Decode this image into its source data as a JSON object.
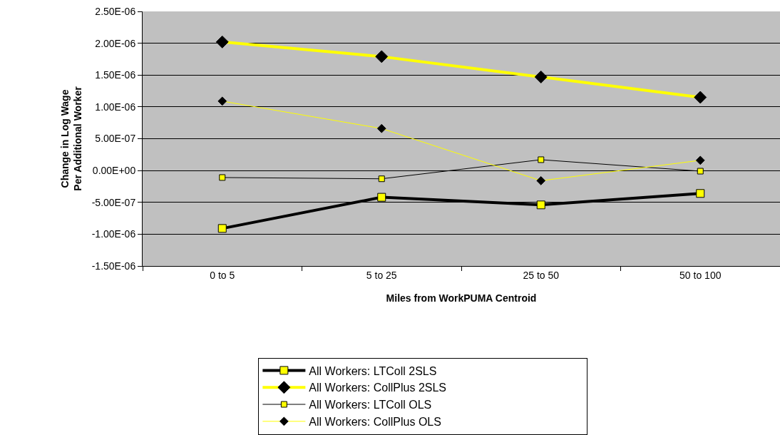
{
  "chart_data": {
    "type": "line",
    "xlabel": "Miles from WorkPUMA Centroid",
    "ylabel": "Change in Log Wage Per Additional Worker",
    "categories": [
      "0 to 5",
      "5 to 25",
      "25 to 50",
      "50 to 100"
    ],
    "series": [
      {
        "name": "All Workers: LTColl 2SLS",
        "color": "#000000",
        "marker": "square",
        "values": [
          -9.1e-07,
          -4.2e-07,
          -5.4e-07,
          -3.6e-07
        ]
      },
      {
        "name": "All Workers: CollPlus 2SLS",
        "color": "#ffff00",
        "marker": "diamond",
        "values": [
          2.02e-06,
          1.79e-06,
          1.47e-06,
          1.15e-06
        ]
      },
      {
        "name": "All Workers: LTColl OLS",
        "color": "#000000",
        "marker": "square",
        "values": [
          -1.1e-07,
          -1.3e-07,
          1.7e-07,
          -1e-08
        ]
      },
      {
        "name": "All Workers: CollPlus OLS",
        "color": "#ffff00",
        "marker": "diamond",
        "values": [
          1.09e-06,
          6.6e-07,
          -1.6e-07,
          1.6e-07
        ]
      }
    ],
    "ylim": [
      -1.5e-06,
      2.5e-06
    ],
    "yticks": [
      {
        "value": -1.5e-06,
        "label": "-1.50E-06"
      },
      {
        "value": -1e-06,
        "label": "-1.00E-06"
      },
      {
        "value": -5e-07,
        "label": "-5.00E-07"
      },
      {
        "value": 0,
        "label": "0.00E+00"
      },
      {
        "value": 5e-07,
        "label": "5.00E-07"
      },
      {
        "value": 1e-06,
        "label": "1.00E-06"
      },
      {
        "value": 1.5e-06,
        "label": "1.50E-06"
      },
      {
        "value": 2e-06,
        "label": "2.00E-06"
      },
      {
        "value": 2.5e-06,
        "label": "2.50E-06"
      }
    ],
    "grid": "y",
    "legend": "bottom",
    "line_style": "solid"
  }
}
